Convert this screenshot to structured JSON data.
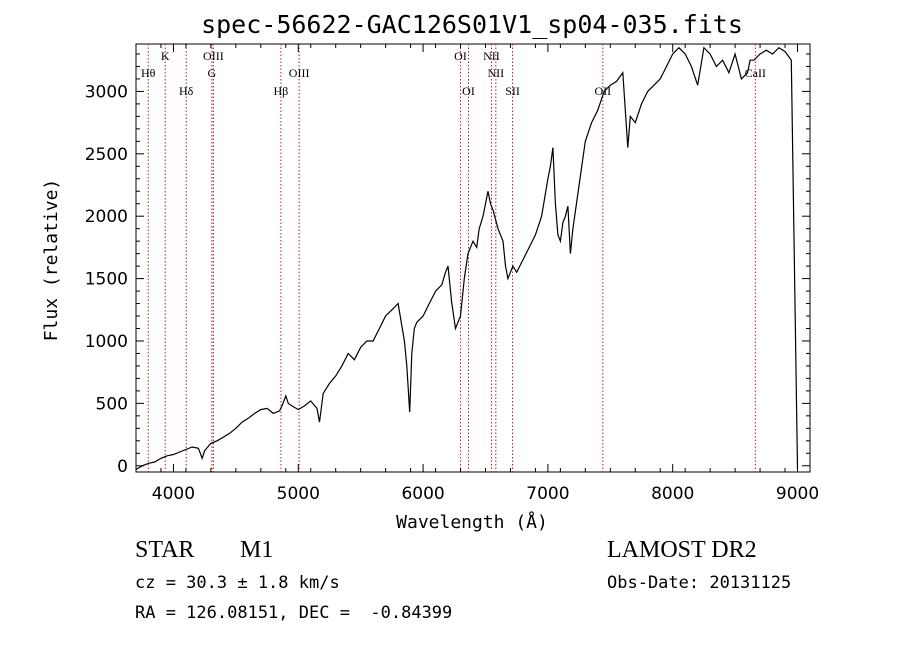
{
  "chart_data": {
    "type": "line",
    "title": "spec-56622-GAC126S01V1_sp04-035.fits",
    "xlabel": "Wavelength (Å)",
    "ylabel": "Flux (relative)",
    "xlim": [
      3700,
      9100
    ],
    "ylim": [
      -50,
      3380
    ],
    "xticks": [
      4000,
      5000,
      6000,
      7000,
      8000,
      9000
    ],
    "xtick_labels": [
      "4000",
      "5000",
      "6000",
      "7000",
      "8000",
      "9000"
    ],
    "yticks": [
      0,
      500,
      1000,
      1500,
      2000,
      2500,
      3000
    ],
    "ytick_labels": [
      "0",
      "500",
      "1000",
      "1500",
      "2000",
      "2500",
      "3000"
    ],
    "line_color": "#000000",
    "marker_color": "#b22222",
    "lines": [
      {
        "label": "Hθ",
        "x": 3798,
        "row": 2
      },
      {
        "label": "K",
        "x": 3934,
        "row": 1
      },
      {
        "label": "Hδ",
        "x": 4102,
        "row": 3
      },
      {
        "label": "OIII",
        "x": 4320,
        "row": 1
      },
      {
        "label": "G",
        "x": 4308,
        "row": 2
      },
      {
        "label": "Hβ",
        "x": 4861,
        "row": 3
      },
      {
        "label": "OIII",
        "x": 5007,
        "row": 2
      },
      {
        "label": "OI",
        "x": 6300,
        "row": 1
      },
      {
        "label": "OI",
        "x": 6364,
        "row": 3
      },
      {
        "label": "NII",
        "x": 6548,
        "row": 1
      },
      {
        "label": "NII",
        "x": 6583,
        "row": 2
      },
      {
        "label": "SII",
        "x": 6717,
        "row": 3
      },
      {
        "label": "OII",
        "x": 7440,
        "row": 3
      },
      {
        "label": "CaII",
        "x": 8662,
        "row": 2
      }
    ],
    "series": [
      {
        "x": [
          3700,
          3750,
          3800,
          3850,
          3900,
          3950,
          4000,
          4050,
          4100,
          4150,
          4200,
          4230,
          4250,
          4300,
          4350,
          4400,
          4450,
          4500,
          4550,
          4600,
          4650,
          4700,
          4750,
          4800,
          4850,
          4870,
          4900,
          4920,
          4950,
          5000,
          5050,
          5100,
          5150,
          5170,
          5200,
          5250,
          5300,
          5350,
          5400,
          5450,
          5500,
          5550,
          5600,
          5650,
          5700,
          5750,
          5800,
          5850,
          5870,
          5893,
          5910,
          5930,
          5950,
          6000,
          6050,
          6100,
          6150,
          6180,
          6200,
          6230,
          6260,
          6300,
          6330,
          6360,
          6400,
          6430,
          6450,
          6480,
          6500,
          6520,
          6540,
          6560,
          6600,
          6640,
          6660,
          6680,
          6700,
          6720,
          6750,
          6800,
          6850,
          6900,
          6950,
          7000,
          7020,
          7040,
          7060,
          7080,
          7100,
          7120,
          7140,
          7160,
          7180,
          7200,
          7250,
          7300,
          7350,
          7400,
          7450,
          7500,
          7550,
          7600,
          7620,
          7640,
          7660,
          7700,
          7750,
          7800,
          7850,
          7900,
          7950,
          8000,
          8050,
          8100,
          8150,
          8200,
          8250,
          8300,
          8350,
          8400,
          8450,
          8500,
          8550,
          8600,
          8620,
          8650,
          8700,
          8750,
          8800,
          8850,
          8900,
          8950,
          9000
        ],
        "y": [
          -30,
          0,
          20,
          30,
          60,
          80,
          90,
          110,
          130,
          150,
          140,
          60,
          120,
          180,
          200,
          230,
          260,
          300,
          350,
          380,
          420,
          450,
          460,
          420,
          440,
          480,
          560,
          500,
          480,
          450,
          480,
          520,
          460,
          350,
          580,
          660,
          720,
          800,
          900,
          850,
          950,
          1000,
          1000,
          1100,
          1200,
          1250,
          1300,
          1000,
          800,
          430,
          900,
          1100,
          1150,
          1200,
          1300,
          1400,
          1450,
          1550,
          1600,
          1300,
          1100,
          1200,
          1500,
          1700,
          1800,
          1750,
          1900,
          2000,
          2100,
          2200,
          2100,
          2050,
          1900,
          1800,
          1600,
          1500,
          1550,
          1600,
          1550,
          1650,
          1750,
          1850,
          2000,
          2300,
          2400,
          2550,
          2100,
          1850,
          1800,
          1950,
          2000,
          2080,
          1700,
          1900,
          2250,
          2600,
          2750,
          2850,
          3000,
          3050,
          3080,
          3150,
          2850,
          2550,
          2800,
          2750,
          2900,
          3000,
          3050,
          3100,
          3200,
          3300,
          3350,
          3300,
          3200,
          3050,
          3350,
          3300,
          3200,
          3250,
          3150,
          3300,
          3100,
          3150,
          3250,
          3250,
          3300,
          3330,
          3300,
          3350,
          3320,
          3250,
          -20
        ]
      }
    ]
  },
  "info": {
    "object_type": "STAR",
    "subclass": "M1",
    "survey": "LAMOST DR2",
    "cz": "cz = 30.3 ± 1.8 km/s",
    "obs_date": "Obs-Date: 20131125",
    "coords": "RA = 126.08151, DEC =  -0.84399"
  }
}
